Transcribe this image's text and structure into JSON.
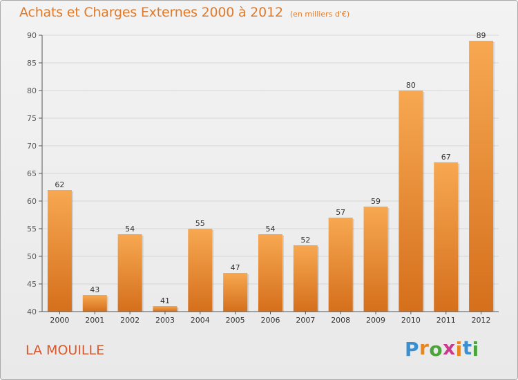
{
  "header": {
    "title": "Achats et Charges Externes 2000 à 2012",
    "subtitle": "(en milliers d'€)"
  },
  "footer": {
    "commune": "LA MOUILLE",
    "brand": "Proxiti"
  },
  "colors": {
    "bar_top": "#f7a851",
    "bar_bottom": "#d56f1c",
    "title": "#e07a2a",
    "commune": "#d9572c",
    "axis": "#555555",
    "grid": "#d6d6d6"
  },
  "chart_data": {
    "type": "bar",
    "title": "Achats et Charges Externes 2000 à 2012",
    "subtitle": "(en milliers d'€)",
    "categories": [
      "2000",
      "2001",
      "2002",
      "2003",
      "2004",
      "2005",
      "2006",
      "2007",
      "2008",
      "2009",
      "2010",
      "2011",
      "2012"
    ],
    "values": [
      62,
      43,
      54,
      41,
      55,
      47,
      54,
      52,
      57,
      59,
      80,
      67,
      89
    ],
    "xlabel": "",
    "ylabel": "",
    "ylim": [
      40,
      90
    ],
    "yticks": [
      40,
      45,
      50,
      55,
      60,
      65,
      70,
      75,
      80,
      85,
      90
    ],
    "grid": true,
    "data_labels": true
  }
}
